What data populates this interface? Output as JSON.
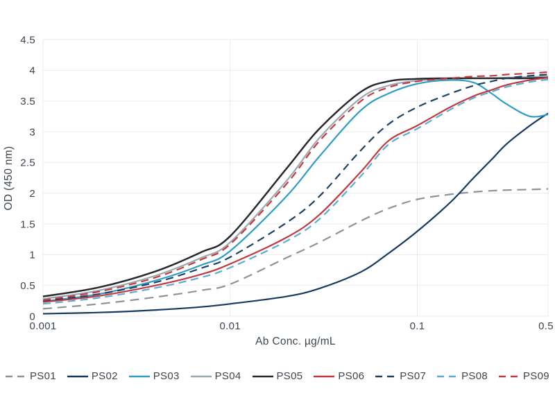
{
  "chart_data": {
    "type": "line",
    "title": "",
    "xlabel": "Ab Conc. µg/mL",
    "ylabel": "OD (450 nm)",
    "x_scale": "log",
    "xlim": [
      0.001,
      0.5
    ],
    "ylim": [
      0,
      4.5
    ],
    "grid": true,
    "legend_position": "bottom",
    "xticks": [
      {
        "value": 0.001,
        "label": "0.001"
      },
      {
        "value": 0.01,
        "label": "0.01"
      },
      {
        "value": 0.1,
        "label": "0.1"
      },
      {
        "value": 0.5,
        "label": "0.5"
      }
    ],
    "yticks": [
      {
        "value": 0,
        "label": "0"
      },
      {
        "value": 0.5,
        "label": "0.5"
      },
      {
        "value": 1,
        "label": "1"
      },
      {
        "value": 1.5,
        "label": "1.5"
      },
      {
        "value": 2,
        "label": "2"
      },
      {
        "value": 2.5,
        "label": "2.5"
      },
      {
        "value": 3,
        "label": "3"
      },
      {
        "value": 3.5,
        "label": "3.5"
      },
      {
        "value": 4,
        "label": "4"
      },
      {
        "value": 4.5,
        "label": "4.5"
      }
    ],
    "x": [
      0.001,
      0.002,
      0.004,
      0.007,
      0.01,
      0.02,
      0.03,
      0.05,
      0.07,
      0.1,
      0.15,
      0.2,
      0.25,
      0.3,
      0.4,
      0.5
    ],
    "series": [
      {
        "name": "PS01",
        "color": "#8b939a",
        "style": "dashed",
        "dash": "13 8",
        "values": [
          0.12,
          0.2,
          0.31,
          0.42,
          0.52,
          0.95,
          1.2,
          1.55,
          1.75,
          1.9,
          1.98,
          2.02,
          2.04,
          2.05,
          2.06,
          2.07
        ]
      },
      {
        "name": "PS02",
        "color": "#16395e",
        "style": "solid",
        "dash": "",
        "values": [
          0.04,
          0.06,
          0.1,
          0.15,
          0.2,
          0.32,
          0.45,
          0.72,
          1.02,
          1.38,
          1.85,
          2.25,
          2.55,
          2.8,
          3.1,
          3.3
        ]
      },
      {
        "name": "PS03",
        "color": "#2d9dc8",
        "style": "solid",
        "dash": "",
        "values": [
          0.24,
          0.36,
          0.58,
          0.83,
          1.06,
          1.95,
          2.6,
          3.35,
          3.62,
          3.78,
          3.84,
          3.8,
          3.62,
          3.45,
          3.25,
          3.28
        ]
      },
      {
        "name": "PS04",
        "color": "#9ca8b0",
        "style": "solid",
        "dash": "",
        "values": [
          0.28,
          0.42,
          0.66,
          0.95,
          1.2,
          2.2,
          2.9,
          3.55,
          3.75,
          3.83,
          3.86,
          3.87,
          3.87,
          3.88,
          3.89,
          3.9
        ]
      },
      {
        "name": "PS05",
        "color": "#25282d",
        "style": "solid",
        "dash": "",
        "values": [
          0.32,
          0.47,
          0.73,
          1.04,
          1.3,
          2.4,
          3.05,
          3.65,
          3.82,
          3.86,
          3.87,
          3.87,
          3.87,
          3.87,
          3.87,
          3.88
        ]
      },
      {
        "name": "PS06",
        "color": "#bf3a40",
        "style": "solid",
        "dash": "",
        "values": [
          0.23,
          0.33,
          0.5,
          0.68,
          0.85,
          1.28,
          1.65,
          2.35,
          2.85,
          3.1,
          3.4,
          3.58,
          3.68,
          3.76,
          3.84,
          3.88
        ]
      },
      {
        "name": "PS07",
        "color": "#1d4063",
        "style": "dashed",
        "dash": "11 7",
        "values": [
          0.25,
          0.36,
          0.55,
          0.78,
          0.96,
          1.52,
          1.95,
          2.7,
          3.12,
          3.4,
          3.62,
          3.75,
          3.82,
          3.87,
          3.91,
          3.93
        ]
      },
      {
        "name": "PS08",
        "color": "#5badd1",
        "style": "dashed",
        "dash": "11 7",
        "values": [
          0.2,
          0.3,
          0.46,
          0.63,
          0.79,
          1.22,
          1.58,
          2.28,
          2.79,
          3.05,
          3.36,
          3.55,
          3.65,
          3.73,
          3.81,
          3.85
        ]
      },
      {
        "name": "PS09",
        "color": "#c23b41",
        "style": "dashed",
        "dash": "11 7",
        "values": [
          0.26,
          0.4,
          0.63,
          0.92,
          1.17,
          2.15,
          2.85,
          3.5,
          3.72,
          3.82,
          3.87,
          3.9,
          3.91,
          3.93,
          3.95,
          3.97
        ]
      }
    ]
  },
  "colors": {
    "background": "#ffffff",
    "grid": "#e9ebed",
    "spine": "#dfe2e5",
    "text": "#3d454d"
  }
}
